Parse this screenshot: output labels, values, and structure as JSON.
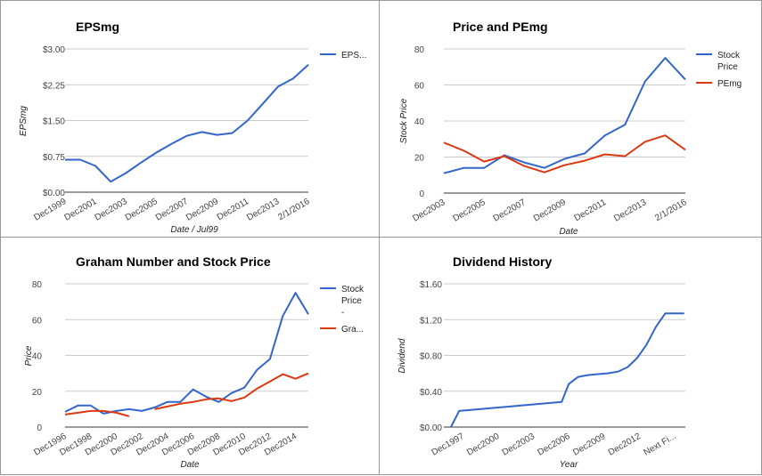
{
  "colors": {
    "blue": "#3366cc",
    "red": "#dc3912"
  },
  "chart_data": [
    {
      "type": "line",
      "title": "EPSmg",
      "xlabel": "Date / Jul99",
      "ylabel": "EPSmg",
      "ylim": [
        0,
        3
      ],
      "yticks": [
        "$0.00",
        "$0.75",
        "$1.50",
        "$2.25",
        "$3.00"
      ],
      "x_tick_labels": [
        "Dec1999",
        "Dec2001",
        "Dec2003",
        "Dec2005",
        "Dec2007",
        "Dec2009",
        "Dec2011",
        "Dec2013",
        "2/1/2016"
      ],
      "legend_position": "right",
      "series": [
        {
          "name": "EPS...",
          "color": "#3366cc",
          "x": [
            1999,
            2000,
            2001,
            2002,
            2003,
            2004,
            2005,
            2006,
            2007,
            2008,
            2009,
            2010,
            2011,
            2012,
            2013,
            2014,
            2015
          ],
          "values": [
            0.68,
            0.68,
            0.55,
            0.22,
            0.4,
            0.62,
            0.83,
            1.01,
            1.18,
            1.26,
            1.2,
            1.24,
            1.5,
            1.85,
            2.21,
            2.38,
            2.67
          ]
        }
      ]
    },
    {
      "type": "line",
      "title": "Price and PEmg",
      "xlabel": "Date",
      "ylabel": "Stock Price",
      "ylim": [
        0,
        80
      ],
      "yticks": [
        "0",
        "20",
        "40",
        "60",
        "80"
      ],
      "x_tick_labels": [
        "Dec2003",
        "Dec2005",
        "Dec2007",
        "Dec2009",
        "Dec2011",
        "Dec2013",
        "2/1/2016"
      ],
      "legend_position": "right",
      "series": [
        {
          "name": "Stock Price",
          "color": "#3366cc",
          "x": [
            2003,
            2004,
            2005,
            2006,
            2007,
            2008,
            2009,
            2010,
            2011,
            2012,
            2013,
            2014,
            2015
          ],
          "values": [
            11,
            14,
            14,
            21,
            17,
            14,
            19,
            22,
            32,
            38,
            62,
            75,
            63
          ]
        },
        {
          "name": "PEmg",
          "color": "#dc3912",
          "x": [
            2003,
            2004,
            2005,
            2006,
            2007,
            2008,
            2009,
            2010,
            2011,
            2012,
            2013,
            2014,
            2015
          ],
          "values": [
            28,
            23.5,
            17.5,
            20.5,
            15,
            11.5,
            15.5,
            18,
            21.5,
            20.5,
            28.5,
            32,
            24
          ]
        }
      ]
    },
    {
      "type": "line",
      "title": "Graham Number and Stock Price",
      "xlabel": "Date",
      "ylabel": "Price",
      "ylim": [
        0,
        80
      ],
      "yticks": [
        "0",
        "20",
        "40",
        "60",
        "80"
      ],
      "x_tick_labels": [
        "Dec1996",
        "Dec1998",
        "Dec2000",
        "Dec2002",
        "Dec2004",
        "Dec2006",
        "Dec2008",
        "Dec2010",
        "Dec2012",
        "Dec2014"
      ],
      "legend_position": "right",
      "series": [
        {
          "name": "Stock Price -",
          "color": "#3366cc",
          "x": [
            1996,
            1997,
            1998,
            1999,
            2000,
            2001,
            2002,
            2003,
            2004,
            2005,
            2006,
            2007,
            2008,
            2009,
            2010,
            2011,
            2012,
            2013,
            2014,
            2015
          ],
          "values": [
            8.5,
            12,
            12,
            7.5,
            9,
            10,
            9,
            11,
            14,
            14,
            21,
            17,
            14,
            19,
            22,
            32,
            38,
            62,
            75,
            63
          ]
        },
        {
          "name": "Gra...",
          "color": "#dc3912",
          "segments": [
            {
              "x": [
                1996,
                1997,
                1998,
                1999,
                2000,
                2001
              ],
              "values": [
                7,
                8,
                9,
                9,
                8,
                6
              ]
            },
            {
              "x": [
                2003,
                2004,
                2005,
                2006,
                2007,
                2008,
                2009,
                2010,
                2011,
                2012,
                2013,
                2014,
                2015
              ],
              "values": [
                10,
                11.5,
                13,
                14,
                15.5,
                16,
                14.5,
                16.5,
                21.5,
                25.5,
                29.5,
                27,
                30
              ]
            }
          ]
        }
      ]
    },
    {
      "type": "line",
      "title": "Dividend History",
      "xlabel": "Year",
      "ylabel": "Dividend",
      "ylim": [
        0,
        1.6
      ],
      "yticks": [
        "$0.00",
        "$0.40",
        "$0.80",
        "$1.20",
        "$1.60"
      ],
      "x_tick_labels": [
        "Dec1997",
        "Dec2000",
        "Dec2003",
        "Dec2006",
        "Dec2009",
        "Dec2012",
        "Next Fi..."
      ],
      "series": [
        {
          "color": "#3366cc",
          "x": [
            1996.6,
            1997.3,
            2006.0,
            2006.6,
            2007.4,
            2008.2,
            2009.0,
            2009.9,
            2010.8,
            2011.6,
            2012.4,
            2013.2,
            2014.0,
            2014.8,
            2015.6,
            2016.4
          ],
          "values": [
            0.0,
            0.18,
            0.28,
            0.48,
            0.56,
            0.58,
            0.59,
            0.6,
            0.62,
            0.67,
            0.77,
            0.92,
            1.12,
            1.27,
            1.27,
            1.27
          ]
        }
      ]
    }
  ]
}
